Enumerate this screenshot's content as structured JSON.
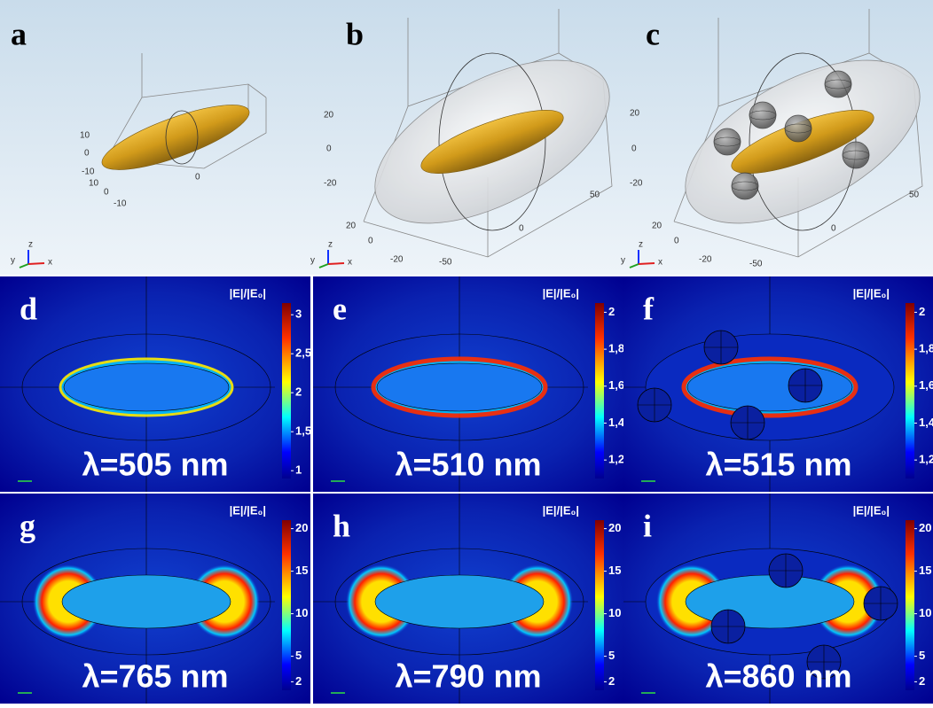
{
  "top_panels": [
    {
      "letter": "a",
      "axis_labels": [
        "10",
        "0",
        "-10",
        "10",
        "0",
        "-10",
        "0"
      ],
      "axis_names": [
        "z",
        "y",
        "x"
      ]
    },
    {
      "letter": "b",
      "axis_labels": [
        "20",
        "0",
        "-20",
        "20",
        "0",
        "-20",
        "-50",
        "0",
        "50"
      ],
      "axis_names": [
        "z",
        "y",
        "x"
      ]
    },
    {
      "letter": "c",
      "axis_labels": [
        "20",
        "0",
        "-20",
        "20",
        "0",
        "-20",
        "-50",
        "0",
        "50"
      ],
      "axis_names": [
        "z",
        "y",
        "x"
      ]
    }
  ],
  "field_panels": [
    {
      "letter": "d",
      "colorbar_title": "|E|/|E₀|",
      "clim": [
        0.9,
        3.15
      ],
      "colorbar_ticks": [
        3,
        {
          "value": 2.5,
          "label": "2,5"
        },
        2,
        {
          "value": 1.5,
          "label": "1,5"
        },
        1
      ],
      "wavelength": "λ=505 nm"
    },
    {
      "letter": "e",
      "colorbar_title": "|E|/|E₀|",
      "clim": [
        1.1,
        2.05
      ],
      "colorbar_ticks": [
        2,
        {
          "value": 1.8,
          "label": "1,8"
        },
        {
          "value": 1.6,
          "label": "1,6"
        },
        {
          "value": 1.4,
          "label": "1,4"
        },
        {
          "value": 1.2,
          "label": "1,2"
        }
      ],
      "wavelength": "λ=510 nm"
    },
    {
      "letter": "f",
      "colorbar_title": "|E|/|E₀|",
      "clim": [
        1.1,
        2.05
      ],
      "colorbar_ticks": [
        2,
        {
          "value": 1.8,
          "label": "1,8"
        },
        {
          "value": 1.6,
          "label": "1,6"
        },
        {
          "value": 1.4,
          "label": "1,4"
        },
        {
          "value": 1.2,
          "label": "1,2"
        }
      ],
      "wavelength": "λ=515 nm"
    },
    {
      "letter": "g",
      "colorbar_title": "|E|/|E₀|",
      "clim": [
        1,
        21
      ],
      "colorbar_ticks": [
        20,
        15,
        10,
        5,
        2
      ],
      "wavelength": "λ=765 nm"
    },
    {
      "letter": "h",
      "colorbar_title": "|E|/|E₀|",
      "clim": [
        1,
        21
      ],
      "colorbar_ticks": [
        20,
        15,
        10,
        5,
        2
      ],
      "wavelength": "λ=790 nm"
    },
    {
      "letter": "i",
      "colorbar_title": "|E|/|E₀|",
      "clim": [
        1,
        21
      ],
      "colorbar_ticks": [
        20,
        15,
        10,
        5,
        2
      ],
      "wavelength": "λ=860 nm"
    }
  ]
}
